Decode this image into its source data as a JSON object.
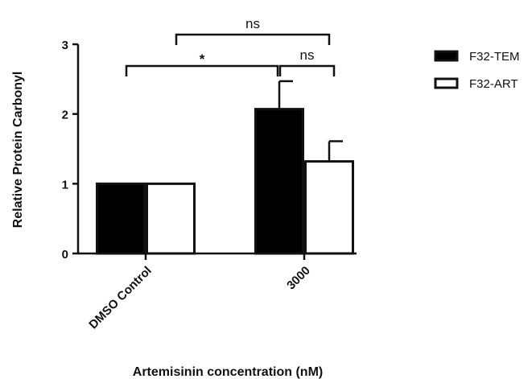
{
  "chart_data": {
    "type": "bar",
    "categories": [
      "DMSO Control",
      "3000"
    ],
    "series": [
      {
        "name": "F32-TEM",
        "values": [
          1.0,
          2.07
        ],
        "errors": [
          0,
          0.4
        ],
        "fill": "#000000"
      },
      {
        "name": "F32-ART",
        "values": [
          1.0,
          1.32
        ],
        "errors": [
          0,
          0.29
        ],
        "fill": "#ffffff"
      }
    ],
    "xlabel": "Artemisinin concentration (nM)",
    "ylabel": "Relative Protein Carbonyl",
    "ylim": [
      0,
      3
    ],
    "yticks": [
      0,
      1,
      2,
      3
    ],
    "grid": false,
    "legend": "top-right",
    "significance": [
      {
        "label": "ns",
        "between": [
          "DMSO Control",
          "3000"
        ]
      },
      {
        "label": "*",
        "between": [
          "DMSO Control",
          "3000 F32-TEM"
        ]
      },
      {
        "label": "ns",
        "between": [
          "3000 F32-TEM",
          "3000 F32-ART"
        ]
      }
    ]
  }
}
